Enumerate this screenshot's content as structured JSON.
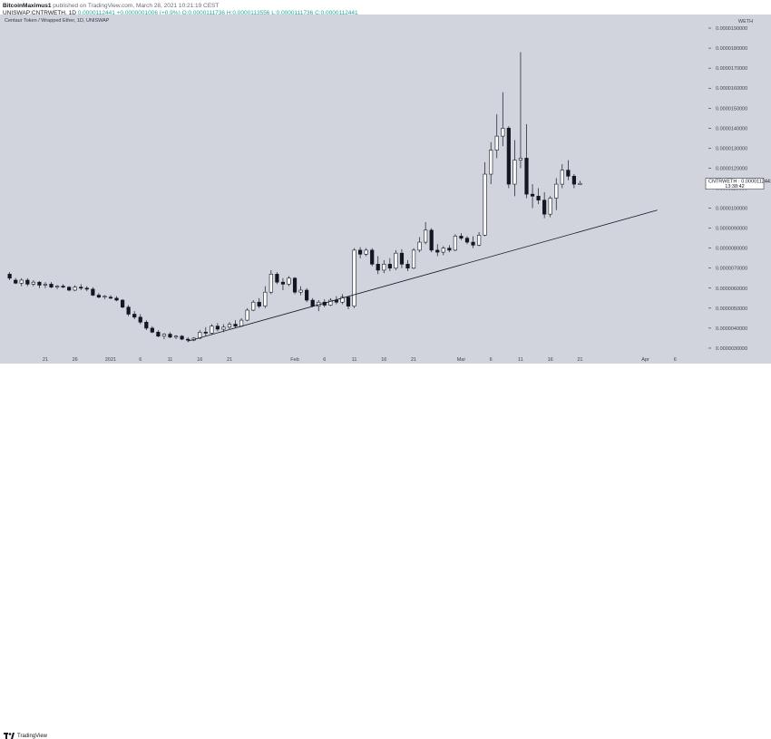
{
  "header": {
    "author": "BitcoinMaximus1",
    "published_text": "published on TradingView.com, March 28, 2021 10:21:19 CEST",
    "ticker_line": "UNISWAP:CNTRWETH, 1D",
    "last_value": "0.0000112441",
    "change": "+0.0000001006 (+0.9%)",
    "ohlc": "O:0.0000111736 H:0.0000113556 L:0.0000111736 C:0.0000112441"
  },
  "symbol_title": "Centaur Token / Wrapped Ether, 1D, UNISWAP",
  "axis_currency": "WETH",
  "price_tag": {
    "symbol": "CNTRWETH",
    "value": "0.0000112441",
    "countdown": "13:38:42"
  },
  "footer": {
    "brand": "TradingView"
  },
  "colors": {
    "background": "#d1d4dc",
    "bull": "#ffffff",
    "bear": "#131722",
    "line": "#131722"
  },
  "chart_data": {
    "type": "candlestick",
    "title": "Centaur Token / Wrapped Ether, 1D, UNISWAP",
    "ylim": [
      2.5e-06,
      1.95e-05
    ],
    "y_ticks": [
      "0.0000190000",
      "0.0000180000",
      "0.0000170000",
      "0.0000160000",
      "0.0000150000",
      "0.0000140000",
      "0.0000130000",
      "0.0000120000",
      "0.0000110000",
      "0.0000100000",
      "0.0000090000",
      "0.0000080000",
      "0.0000070000",
      "0.0000060000",
      "0.0000050000",
      "0.0000040000",
      "0.0000030000"
    ],
    "x_ticks": [
      "21",
      "26",
      "2021",
      "6",
      "11",
      "16",
      "21",
      "Feb",
      "6",
      "11",
      "16",
      "21",
      "Mar",
      "6",
      "11",
      "16",
      "21",
      "Apr",
      "6",
      "12"
    ],
    "x_tick_days": [
      -11,
      -6,
      0,
      5,
      10,
      15,
      20,
      31,
      36,
      41,
      46,
      51,
      59,
      64,
      69,
      74,
      79,
      90,
      95,
      101
    ],
    "trendline": {
      "from": {
        "day": 13,
        "price": 3.35e-06
      },
      "to": {
        "day": 92,
        "price": 9.9e-06
      }
    },
    "candles": [
      {
        "d": -17,
        "o": 6.7e-06,
        "h": 6.8e-06,
        "l": 6.4e-06,
        "c": 6.5e-06
      },
      {
        "d": -16,
        "o": 6.4e-06,
        "h": 6.5e-06,
        "l": 6.2e-06,
        "c": 6.25e-06
      },
      {
        "d": -15,
        "o": 6.25e-06,
        "h": 6.5e-06,
        "l": 6.1e-06,
        "c": 6.4e-06
      },
      {
        "d": -14,
        "o": 6.4e-06,
        "h": 6.5e-06,
        "l": 6.1e-06,
        "c": 6.2e-06
      },
      {
        "d": -13,
        "o": 6.2e-06,
        "h": 6.4e-06,
        "l": 6.1e-06,
        "c": 6.3e-06
      },
      {
        "d": -12,
        "o": 6.3e-06,
        "h": 6.35e-06,
        "l": 6e-06,
        "c": 6.15e-06
      },
      {
        "d": -11,
        "o": 6.15e-06,
        "h": 6.3e-06,
        "l": 6e-06,
        "c": 6.2e-06
      },
      {
        "d": -10,
        "o": 6.2e-06,
        "h": 6.3e-06,
        "l": 6e-06,
        "c": 6.05e-06
      },
      {
        "d": -9,
        "o": 6.05e-06,
        "h": 6.15e-06,
        "l": 5.95e-06,
        "c": 6.1e-06
      },
      {
        "d": -8,
        "o": 6.1e-06,
        "h": 6.2e-06,
        "l": 6e-06,
        "c": 6.05e-06
      },
      {
        "d": -7,
        "o": 6.05e-06,
        "h": 6.1e-06,
        "l": 5.85e-06,
        "c": 5.9e-06
      },
      {
        "d": -6,
        "o": 5.9e-06,
        "h": 6.15e-06,
        "l": 5.85e-06,
        "c": 6.05e-06
      },
      {
        "d": -5,
        "o": 6.05e-06,
        "h": 6.2e-06,
        "l": 5.9e-06,
        "c": 6e-06
      },
      {
        "d": -4,
        "o": 6e-06,
        "h": 6.1e-06,
        "l": 5.85e-06,
        "c": 5.95e-06
      },
      {
        "d": -3,
        "o": 5.95e-06,
        "h": 6.05e-06,
        "l": 5.6e-06,
        "c": 5.65e-06
      },
      {
        "d": -2,
        "o": 5.65e-06,
        "h": 5.75e-06,
        "l": 5.5e-06,
        "c": 5.55e-06
      },
      {
        "d": -1,
        "o": 5.55e-06,
        "h": 5.65e-06,
        "l": 5.45e-06,
        "c": 5.6e-06
      },
      {
        "d": 0,
        "o": 5.55e-06,
        "h": 5.65e-06,
        "l": 5.45e-06,
        "c": 5.5e-06
      },
      {
        "d": 1,
        "o": 5.5e-06,
        "h": 5.6e-06,
        "l": 5.35e-06,
        "c": 5.4e-06
      },
      {
        "d": 2,
        "o": 5.4e-06,
        "h": 5.45e-06,
        "l": 5e-06,
        "c": 5.05e-06
      },
      {
        "d": 3,
        "o": 5.05e-06,
        "h": 5.15e-06,
        "l": 4.6e-06,
        "c": 4.7e-06
      },
      {
        "d": 4,
        "o": 4.7e-06,
        "h": 4.85e-06,
        "l": 4.45e-06,
        "c": 4.55e-06
      },
      {
        "d": 5,
        "o": 4.55e-06,
        "h": 4.7e-06,
        "l": 4.2e-06,
        "c": 4.3e-06
      },
      {
        "d": 6,
        "o": 4.3e-06,
        "h": 4.4e-06,
        "l": 3.9e-06,
        "c": 4e-06
      },
      {
        "d": 7,
        "o": 4e-06,
        "h": 4.1e-06,
        "l": 3.75e-06,
        "c": 3.8e-06
      },
      {
        "d": 8,
        "o": 3.8e-06,
        "h": 3.9e-06,
        "l": 3.55e-06,
        "c": 3.6e-06
      },
      {
        "d": 9,
        "o": 3.6e-06,
        "h": 3.75e-06,
        "l": 3.45e-06,
        "c": 3.7e-06
      },
      {
        "d": 10,
        "o": 3.7e-06,
        "h": 3.8e-06,
        "l": 3.5e-06,
        "c": 3.55e-06
      },
      {
        "d": 11,
        "o": 3.55e-06,
        "h": 3.65e-06,
        "l": 3.45e-06,
        "c": 3.6e-06
      },
      {
        "d": 12,
        "o": 3.6e-06,
        "h": 3.65e-06,
        "l": 3.4e-06,
        "c": 3.45e-06
      },
      {
        "d": 13,
        "o": 3.45e-06,
        "h": 3.55e-06,
        "l": 3.3e-06,
        "c": 3.4e-06
      },
      {
        "d": 14,
        "o": 3.4e-06,
        "h": 3.55e-06,
        "l": 3.35e-06,
        "c": 3.5e-06
      },
      {
        "d": 15,
        "o": 3.5e-06,
        "h": 3.9e-06,
        "l": 3.45e-06,
        "c": 3.8e-06
      },
      {
        "d": 16,
        "o": 3.8e-06,
        "h": 4.05e-06,
        "l": 3.6e-06,
        "c": 3.75e-06
      },
      {
        "d": 17,
        "o": 3.75e-06,
        "h": 4.2e-06,
        "l": 3.7e-06,
        "c": 4.1e-06
      },
      {
        "d": 18,
        "o": 4.1e-06,
        "h": 4.25e-06,
        "l": 3.85e-06,
        "c": 3.95e-06
      },
      {
        "d": 19,
        "o": 3.95e-06,
        "h": 4.2e-06,
        "l": 3.8e-06,
        "c": 4.05e-06
      },
      {
        "d": 20,
        "o": 4.05e-06,
        "h": 4.3e-06,
        "l": 3.95e-06,
        "c": 4.2e-06
      },
      {
        "d": 21,
        "o": 4.2e-06,
        "h": 4.4e-06,
        "l": 4e-06,
        "c": 4.1e-06
      },
      {
        "d": 22,
        "o": 4.1e-06,
        "h": 4.5e-06,
        "l": 4.05e-06,
        "c": 4.4e-06
      },
      {
        "d": 23,
        "o": 4.4e-06,
        "h": 5e-06,
        "l": 4.35e-06,
        "c": 4.9e-06
      },
      {
        "d": 24,
        "o": 4.9e-06,
        "h": 5.4e-06,
        "l": 4.85e-06,
        "c": 5.3e-06
      },
      {
        "d": 25,
        "o": 5.3e-06,
        "h": 5.5e-06,
        "l": 5e-06,
        "c": 5.1e-06
      },
      {
        "d": 26,
        "o": 5.1e-06,
        "h": 6.1e-06,
        "l": 5e-06,
        "c": 5.8e-06
      },
      {
        "d": 27,
        "o": 5.8e-06,
        "h": 6.9e-06,
        "l": 5.7e-06,
        "c": 6.7e-06
      },
      {
        "d": 28,
        "o": 6.7e-06,
        "h": 6.8e-06,
        "l": 6.2e-06,
        "c": 6.3e-06
      },
      {
        "d": 29,
        "o": 6.3e-06,
        "h": 6.5e-06,
        "l": 5.9e-06,
        "c": 6.2e-06
      },
      {
        "d": 30,
        "o": 6.2e-06,
        "h": 6.6e-06,
        "l": 6.1e-06,
        "c": 6.5e-06
      },
      {
        "d": 31,
        "o": 6.5e-06,
        "h": 6.55e-06,
        "l": 5.7e-06,
        "c": 5.8e-06
      },
      {
        "d": 32,
        "o": 5.8e-06,
        "h": 6.1e-06,
        "l": 5.65e-06,
        "c": 5.9e-06
      },
      {
        "d": 33,
        "o": 5.9e-06,
        "h": 6e-06,
        "l": 5.3e-06,
        "c": 5.4e-06
      },
      {
        "d": 34,
        "o": 5.4e-06,
        "h": 5.5e-06,
        "l": 5.05e-06,
        "c": 5.1e-06
      },
      {
        "d": 35,
        "o": 5.1e-06,
        "h": 5.4e-06,
        "l": 4.85e-06,
        "c": 5.3e-06
      },
      {
        "d": 36,
        "o": 5.3e-06,
        "h": 5.45e-06,
        "l": 5.05e-06,
        "c": 5.15e-06
      },
      {
        "d": 37,
        "o": 5.15e-06,
        "h": 5.5e-06,
        "l": 5.1e-06,
        "c": 5.4e-06
      },
      {
        "d": 38,
        "o": 5.4e-06,
        "h": 5.6e-06,
        "l": 5.2e-06,
        "c": 5.3e-06
      },
      {
        "d": 39,
        "o": 5.3e-06,
        "h": 5.7e-06,
        "l": 5.2e-06,
        "c": 5.55e-06
      },
      {
        "d": 40,
        "o": 5.55e-06,
        "h": 5.6e-06,
        "l": 4.95e-06,
        "c": 5.1e-06
      },
      {
        "d": 41,
        "o": 5.1e-06,
        "h": 8e-06,
        "l": 5e-06,
        "c": 7.9e-06
      },
      {
        "d": 42,
        "o": 7.9e-06,
        "h": 8.05e-06,
        "l": 7.5e-06,
        "c": 7.7e-06
      },
      {
        "d": 43,
        "o": 7.7e-06,
        "h": 8e-06,
        "l": 7.6e-06,
        "c": 7.9e-06
      },
      {
        "d": 44,
        "o": 7.9e-06,
        "h": 8e-06,
        "l": 7.1e-06,
        "c": 7.2e-06
      },
      {
        "d": 45,
        "o": 7.2e-06,
        "h": 7.6e-06,
        "l": 6.7e-06,
        "c": 6.9e-06
      },
      {
        "d": 46,
        "o": 6.9e-06,
        "h": 7.4e-06,
        "l": 6.75e-06,
        "c": 7.2e-06
      },
      {
        "d": 47,
        "o": 7.2e-06,
        "h": 7.5e-06,
        "l": 6.85e-06,
        "c": 7e-06
      },
      {
        "d": 48,
        "o": 7e-06,
        "h": 7.9e-06,
        "l": 6.9e-06,
        "c": 7.75e-06
      },
      {
        "d": 49,
        "o": 7.75e-06,
        "h": 7.95e-06,
        "l": 7e-06,
        "c": 7.2e-06
      },
      {
        "d": 50,
        "o": 7.2e-06,
        "h": 7.4e-06,
        "l": 6.85e-06,
        "c": 7e-06
      },
      {
        "d": 51,
        "o": 7e-06,
        "h": 8e-06,
        "l": 6.95e-06,
        "c": 7.9e-06
      },
      {
        "d": 52,
        "o": 7.9e-06,
        "h": 8.55e-06,
        "l": 7.8e-06,
        "c": 8.3e-06
      },
      {
        "d": 53,
        "o": 8.3e-06,
        "h": 9.3e-06,
        "l": 8.2e-06,
        "c": 8.9e-06
      },
      {
        "d": 54,
        "o": 8.9e-06,
        "h": 9e-06,
        "l": 7.8e-06,
        "c": 7.9e-06
      },
      {
        "d": 55,
        "o": 7.9e-06,
        "h": 8.2e-06,
        "l": 7.6e-06,
        "c": 7.8e-06
      },
      {
        "d": 56,
        "o": 7.8e-06,
        "h": 8.1e-06,
        "l": 7.65e-06,
        "c": 8e-06
      },
      {
        "d": 57,
        "o": 8e-06,
        "h": 8.15e-06,
        "l": 7.8e-06,
        "c": 7.9e-06
      },
      {
        "d": 58,
        "o": 7.9e-06,
        "h": 8.7e-06,
        "l": 7.85e-06,
        "c": 8.6e-06
      },
      {
        "d": 59,
        "o": 8.6e-06,
        "h": 8.75e-06,
        "l": 8.4e-06,
        "c": 8.5e-06
      },
      {
        "d": 60,
        "o": 8.5e-06,
        "h": 8.6e-06,
        "l": 8.2e-06,
        "c": 8.3e-06
      },
      {
        "d": 61,
        "o": 8.3e-06,
        "h": 8.6e-06,
        "l": 8e-06,
        "c": 8.15e-06
      },
      {
        "d": 62,
        "o": 8.15e-06,
        "h": 8.8e-06,
        "l": 8.1e-06,
        "c": 8.65e-06
      },
      {
        "d": 63,
        "o": 8.65e-06,
        "h": 1.23e-05,
        "l": 8.6e-06,
        "c": 1.17e-05
      },
      {
        "d": 64,
        "o": 1.17e-05,
        "h": 1.33e-05,
        "l": 1.12e-05,
        "c": 1.29e-05
      },
      {
        "d": 65,
        "o": 1.29e-05,
        "h": 1.47e-05,
        "l": 1.25e-05,
        "c": 1.36e-05
      },
      {
        "d": 66,
        "o": 1.36e-05,
        "h": 1.58e-05,
        "l": 1.31e-05,
        "c": 1.4e-05
      },
      {
        "d": 67,
        "o": 1.4e-05,
        "h": 1.41e-05,
        "l": 1.1e-05,
        "c": 1.12e-05
      },
      {
        "d": 68,
        "o": 1.12e-05,
        "h": 1.34e-05,
        "l": 1.06e-05,
        "c": 1.24e-05
      },
      {
        "d": 69,
        "o": 1.24e-05,
        "h": 1.78e-05,
        "l": 1.2e-05,
        "c": 1.25e-05
      },
      {
        "d": 70,
        "o": 1.25e-05,
        "h": 1.42e-05,
        "l": 1.05e-05,
        "c": 1.07e-05
      },
      {
        "d": 71,
        "o": 1.07e-05,
        "h": 1.12e-05,
        "l": 1e-05,
        "c": 1.06e-05
      },
      {
        "d": 72,
        "o": 1.06e-05,
        "h": 1.1e-05,
        "l": 1.02e-05,
        "c": 1.04e-05
      },
      {
        "d": 73,
        "o": 1.04e-05,
        "h": 1.08e-05,
        "l": 9.5e-06,
        "c": 9.7e-06
      },
      {
        "d": 74,
        "o": 9.7e-06,
        "h": 1.06e-05,
        "l": 9.55e-06,
        "c": 1.05e-05
      },
      {
        "d": 75,
        "o": 1.05e-05,
        "h": 1.15e-05,
        "l": 9.9e-06,
        "c": 1.12e-05
      },
      {
        "d": 76,
        "o": 1.12e-05,
        "h": 1.22e-05,
        "l": 1.1e-05,
        "c": 1.19e-05
      },
      {
        "d": 77,
        "o": 1.19e-05,
        "h": 1.24e-05,
        "l": 1.14e-05,
        "c": 1.16e-05
      },
      {
        "d": 78,
        "o": 1.16e-05,
        "h": 1.17e-05,
        "l": 1.1e-05,
        "c": 1.12e-05
      },
      {
        "d": 79,
        "o": 1.118e-05,
        "h": 1.136e-05,
        "l": 1.117e-05,
        "c": 1.124e-05
      }
    ]
  }
}
